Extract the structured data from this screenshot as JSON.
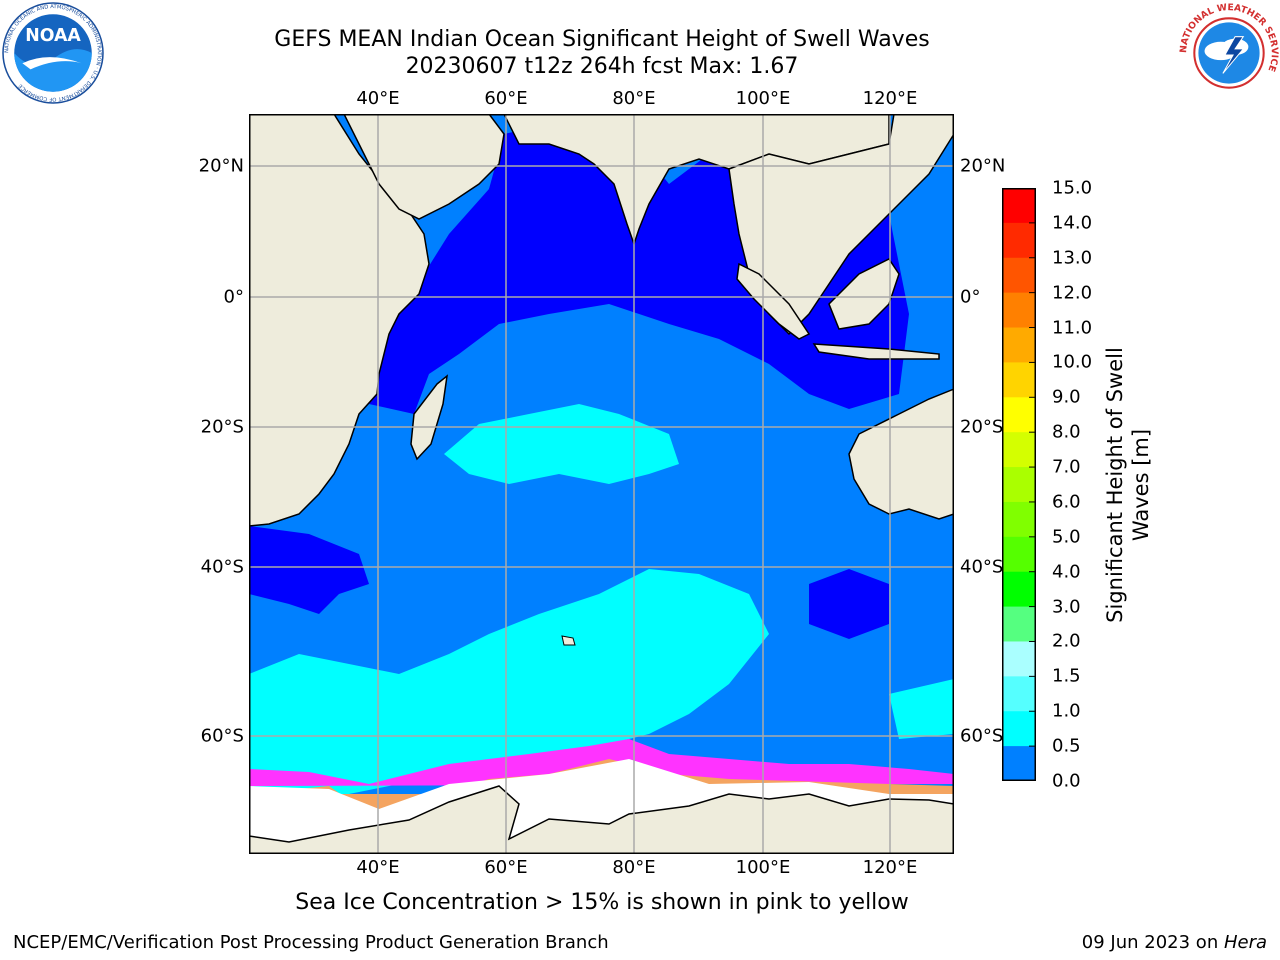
{
  "title": {
    "line1": "GEFS MEAN Indian Ocean Significant Height of Swell Waves",
    "line2": "20230607 t12z 264h fcst   Max: 1.67"
  },
  "axes": {
    "lon_ticks": [
      "40°E",
      "60°E",
      "80°E",
      "100°E",
      "120°E"
    ],
    "lat_ticks": [
      "20°N",
      "0°",
      "20°S",
      "40°S",
      "60°S"
    ]
  },
  "colorbar": {
    "title_line1": "Significant Height of Swell",
    "title_line2": "Waves [m]",
    "labels": [
      "15.0",
      "14.0",
      "13.0",
      "12.0",
      "11.0",
      "10.0",
      "9.0",
      "8.0",
      "7.0",
      "6.0",
      "5.0",
      "4.0",
      "3.0",
      "2.0",
      "1.5",
      "1.0",
      "0.5",
      "0.0"
    ],
    "colors": [
      "#ff0000",
      "#ff2a00",
      "#ff5500",
      "#ff8000",
      "#ffaa00",
      "#ffd400",
      "#ffff00",
      "#d4ff00",
      "#aaff00",
      "#80ff00",
      "#55ff00",
      "#00ff00",
      "#55ff80",
      "#aaffff",
      "#55ffff",
      "#00ffff",
      "#0080ff",
      "#0000ff"
    ]
  },
  "map": {
    "land_color": "#eeecdc",
    "ocean_deep_blue": "#0000ff",
    "ocean_blue": "#0080ff",
    "ocean_cyan": "#00ffff",
    "ice_pink": "#ff33ff",
    "ice_orange": "#f4a460",
    "ice_white": "#ffffff"
  },
  "footnote": "Sea Ice Concentration > 15% is shown in pink to yellow",
  "credit_left": "NCEP/EMC/Verification Post Processing Product Generation Branch",
  "credit_right_prefix": "09 Jun 2023 on ",
  "credit_right_machine": "Hera",
  "logos": {
    "noaa_text": "NOAA",
    "noaa_ring": "NATIONAL OCEANIC AND ATMOSPHERIC ADMINISTRATION · U.S. DEPARTMENT OF COMMERCE",
    "nws_ring": "NATIONAL WEATHER SERVICE"
  }
}
